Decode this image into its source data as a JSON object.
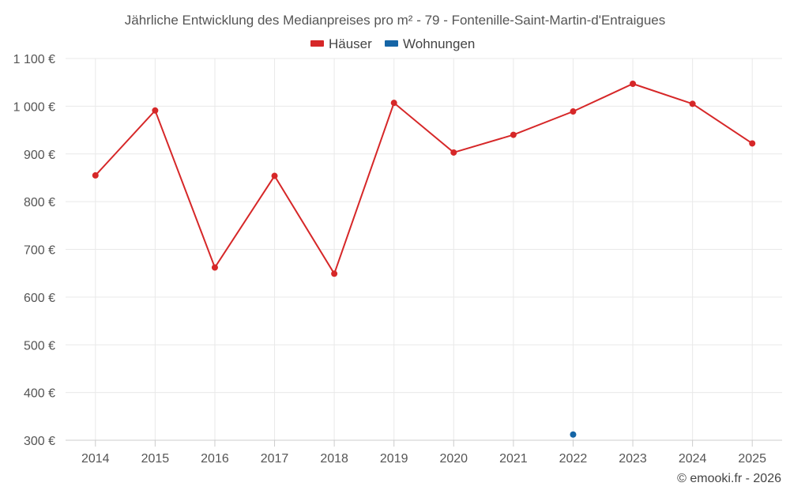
{
  "chart_data": {
    "type": "line",
    "title": "Jährliche Entwicklung des Medianpreises pro m² - 79 - Fontenille-Saint-Martin-d'Entraigues",
    "categories": [
      "2014",
      "2015",
      "2016",
      "2017",
      "2018",
      "2019",
      "2020",
      "2021",
      "2022",
      "2023",
      "2024",
      "2025"
    ],
    "y_ticks": [
      "300 €",
      "400 €",
      "500 €",
      "600 €",
      "700 €",
      "800 €",
      "900 €",
      "1 000 €",
      "1 100 €"
    ],
    "ylim": [
      300,
      1100
    ],
    "grid": true,
    "legend_position": "top-center",
    "series": [
      {
        "name": "Häuser",
        "color": "#d62728",
        "values": [
          855,
          991,
          662,
          854,
          649,
          1007,
          903,
          940,
          989,
          1047,
          1005,
          922
        ]
      },
      {
        "name": "Wohnungen",
        "color": "#1565a6",
        "values": [
          null,
          null,
          null,
          null,
          null,
          null,
          null,
          null,
          312,
          null,
          null,
          null
        ]
      }
    ],
    "credit": "© emooki.fr - 2026"
  }
}
